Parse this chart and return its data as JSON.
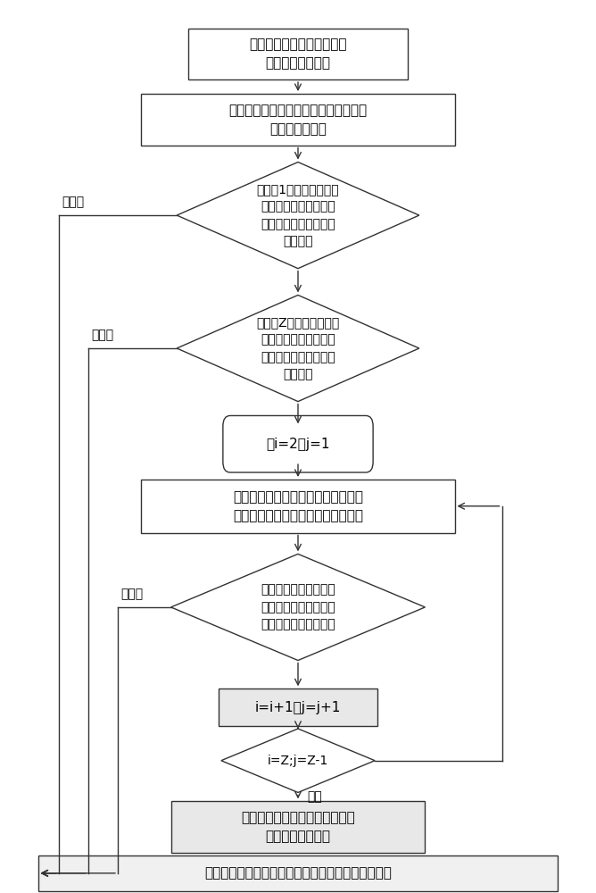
{
  "bg_color": "#ffffff",
  "box1_text": "建立含整体壁板结构的全机\n静强度有限元模型",
  "box2_text": "选定结构考核截面，定义考核截面上杆\n单元板单元序号",
  "diamond1_text": "断开第1个杆单元，计算\n并判断剩余结构应力水\n平是否满足静强度限制\n载荷要求",
  "diamond2_text": "断开第Z个杆单元，计算\n并判断剩余结构应力水\n平是否满足静强度限制\n载荷要求",
  "rounded1_text": "令i=2，j=1",
  "box3_text": "依次每个相邻壁板组中的杆单元和板\n单元，计算相应的剩余结构应力水平",
  "diamond3_text": "判断剩余结构应力水平\n是否满足静强度限制载\n荷下应力水平控制要求",
  "box4_text": "i=i+1；j=j+1",
  "diamond4_text": "i=Z;j=Z-1",
  "box5_text": "结论：整体加筋壁板该截面上的\n结构参数匹配合理",
  "boxB_text": "结论：整体加筋壁板该截面上的结构参数匹配不合理",
  "label_bumanzu": "不满足",
  "label_manzhu": "满足",
  "font_size": 11,
  "font_size_small": 10
}
